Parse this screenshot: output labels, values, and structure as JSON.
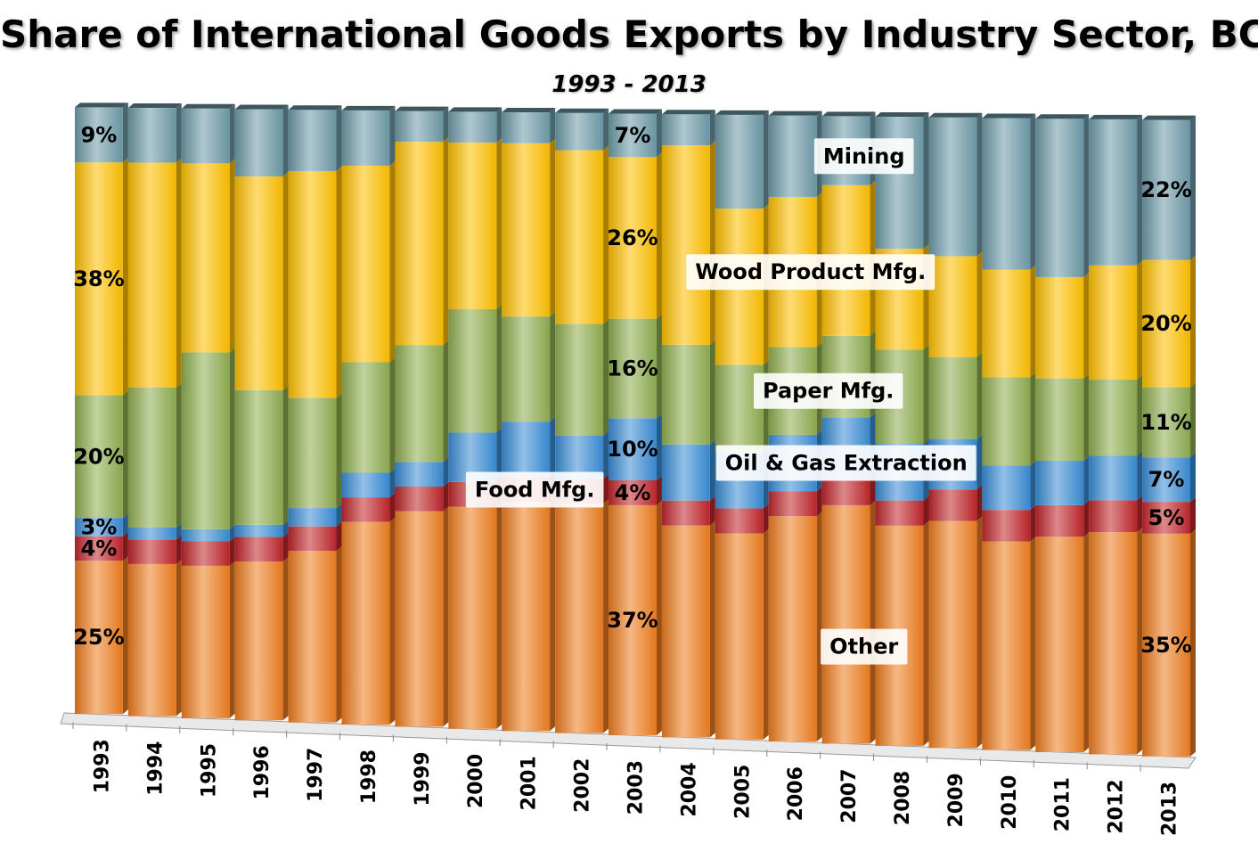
{
  "chart_data": {
    "type": "bar",
    "stacked": true,
    "title": "Share of International Goods Exports by Industry Sector, BC",
    "subtitle": "1993 - 2013",
    "ylim": [
      0,
      100
    ],
    "grid": false,
    "legend": "inline labels",
    "categories": [
      "1993",
      "1994",
      "1995",
      "1996",
      "1997",
      "1998",
      "1999",
      "2000",
      "2001",
      "2002",
      "2003",
      "2004",
      "2005",
      "2006",
      "2007",
      "2008",
      "2009",
      "2010",
      "2011",
      "2012",
      "2013"
    ],
    "series": [
      {
        "name": "Other",
        "color": "#EE7D20",
        "values": [
          25,
          25,
          25,
          26,
          28,
          33,
          35,
          36,
          37,
          37,
          37,
          34,
          33,
          36,
          38,
          35,
          36,
          33,
          34,
          35,
          35
        ]
      },
      {
        "name": "Food Mfg.",
        "color": "#C0262B",
        "values": [
          4,
          4,
          4,
          4,
          4,
          4,
          4,
          4,
          4,
          4,
          4,
          4,
          4,
          4,
          4,
          4,
          5,
          5,
          5,
          5,
          5
        ]
      },
      {
        "name": "Oil & Gas Extraction",
        "color": "#3A8DD6",
        "values": [
          3,
          2,
          2,
          2,
          3,
          4,
          4,
          8,
          9,
          7,
          10,
          9,
          9,
          9,
          10,
          9,
          8,
          7,
          7,
          7,
          7
        ]
      },
      {
        "name": "Paper Mfg.",
        "color": "#8FAE50",
        "values": [
          20,
          23,
          29,
          22,
          18,
          18,
          19,
          20,
          17,
          18,
          16,
          16,
          14,
          14,
          13,
          15,
          13,
          14,
          13,
          12,
          11
        ]
      },
      {
        "name": "Wood Product Mfg.",
        "color": "#FFC000",
        "values": [
          38,
          37,
          31,
          35,
          37,
          32,
          33,
          27,
          28,
          28,
          26,
          32,
          25,
          24,
          24,
          16,
          16,
          17,
          16,
          18,
          20
        ]
      },
      {
        "name": "Mining",
        "color": "#6E9BA8",
        "values": [
          9,
          9,
          9,
          11,
          10,
          9,
          5,
          5,
          5,
          6,
          7,
          5,
          15,
          13,
          11,
          21,
          22,
          24,
          25,
          23,
          22
        ]
      }
    ],
    "annotations": [
      {
        "text": "9%",
        "category": "1993",
        "series": "Mining"
      },
      {
        "text": "38%",
        "category": "1993",
        "series": "Wood Product Mfg."
      },
      {
        "text": "20%",
        "category": "1993",
        "series": "Paper Mfg."
      },
      {
        "text": "3%",
        "category": "1993",
        "series": "Oil & Gas Extraction"
      },
      {
        "text": "4%",
        "category": "1993",
        "series": "Food Mfg."
      },
      {
        "text": "25%",
        "category": "1993",
        "series": "Other"
      },
      {
        "text": "7%",
        "category": "2003",
        "series": "Mining"
      },
      {
        "text": "26%",
        "category": "2003",
        "series": "Wood Product Mfg."
      },
      {
        "text": "16%",
        "category": "2003",
        "series": "Paper Mfg."
      },
      {
        "text": "10%",
        "category": "2003",
        "series": "Oil & Gas Extraction"
      },
      {
        "text": "4%",
        "category": "2003",
        "series": "Food Mfg."
      },
      {
        "text": "37%",
        "category": "2003",
        "series": "Other"
      },
      {
        "text": "22%",
        "category": "2013",
        "series": "Mining"
      },
      {
        "text": "20%",
        "category": "2013",
        "series": "Wood Product Mfg."
      },
      {
        "text": "11%",
        "category": "2013",
        "series": "Paper Mfg."
      },
      {
        "text": "7%",
        "category": "2013",
        "series": "Oil & Gas Extraction"
      },
      {
        "text": "5%",
        "category": "2013",
        "series": "Food Mfg."
      },
      {
        "text": "35%",
        "category": "2013",
        "series": "Other"
      }
    ],
    "series_labels": [
      {
        "text": "Mining",
        "series": "Mining"
      },
      {
        "text": "Wood Product Mfg.",
        "series": "Wood Product Mfg."
      },
      {
        "text": "Paper Mfg.",
        "series": "Paper Mfg."
      },
      {
        "text": "Oil & Gas Extraction",
        "series": "Oil & Gas Extraction"
      },
      {
        "text": "Food Mfg.",
        "series": "Food Mfg."
      },
      {
        "text": "Other",
        "series": "Other"
      }
    ]
  }
}
